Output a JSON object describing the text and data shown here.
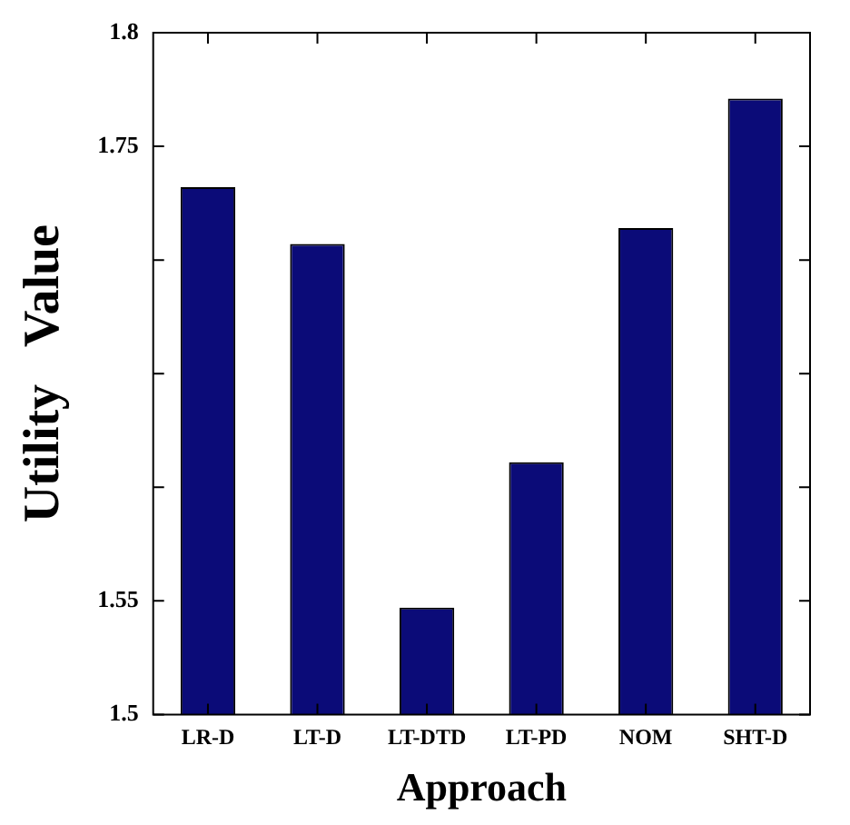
{
  "chart_data": {
    "type": "bar",
    "xlabel": "Approach",
    "ylabel": "Utility   Value",
    "categories": [
      "LR-D",
      "LT-D",
      "LT-DTD",
      "LT-PD",
      "NOM",
      "SHT-D"
    ],
    "values": [
      1.732,
      1.707,
      1.547,
      1.611,
      1.714,
      1.771
    ],
    "color": "#0b0b78",
    "ylim": [
      1.5,
      1.8
    ],
    "yticks": [
      1.5,
      1.55,
      {
        "value": 1.6,
        "label": null
      },
      {
        "value": 1.65,
        "label": null
      },
      {
        "value": 1.7,
        "label": null
      },
      1.75,
      1.8
    ],
    "grid": false,
    "legend": false
  }
}
